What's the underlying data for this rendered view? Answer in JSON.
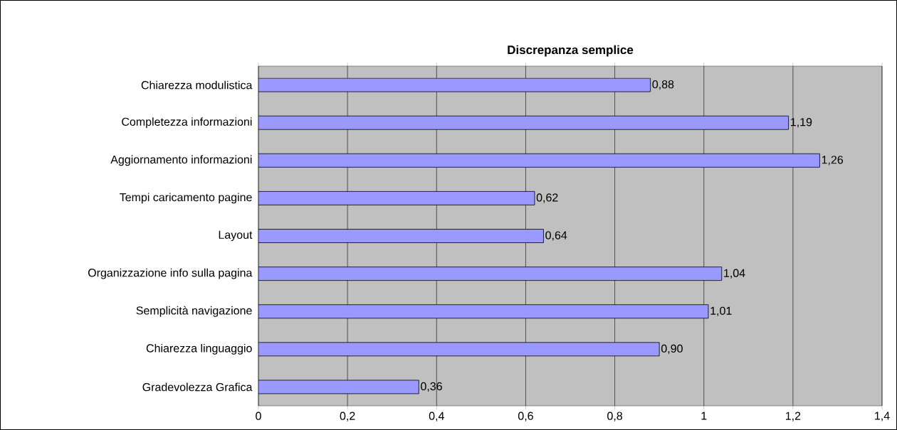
{
  "chart_data": {
    "type": "bar",
    "orientation": "horizontal",
    "title": "Discrepanza semplice",
    "categories": [
      "Chiarezza modulistica",
      "Completezza informazioni",
      "Aggiornamento informazioni",
      "Tempi caricamento pagine",
      "Layout",
      "Organizzazione info sulla pagina",
      "Semplicità navigazione",
      "Chiarezza linguaggio",
      "Gradevolezza Grafica"
    ],
    "values": [
      0.88,
      1.19,
      1.26,
      0.62,
      0.64,
      1.04,
      1.01,
      0.9,
      0.36
    ],
    "value_labels": [
      "0,88",
      "1,19",
      "1,26",
      "0,62",
      "0,64",
      "1,04",
      "1,01",
      "0,90",
      "0,36"
    ],
    "color": "#9999ff",
    "xlim": [
      0,
      1.4
    ],
    "xticks": [
      0,
      {
        "value": 0.2,
        "label": "0,2"
      },
      {
        "value": 0.4,
        "label": "0,4"
      },
      {
        "value": 0.6,
        "label": "0,6"
      },
      {
        "value": 0.8,
        "label": "0,8"
      },
      1,
      {
        "value": 1.2,
        "label": "1,2"
      },
      {
        "value": 1.4,
        "label": "1,4"
      }
    ],
    "grid": "x"
  }
}
